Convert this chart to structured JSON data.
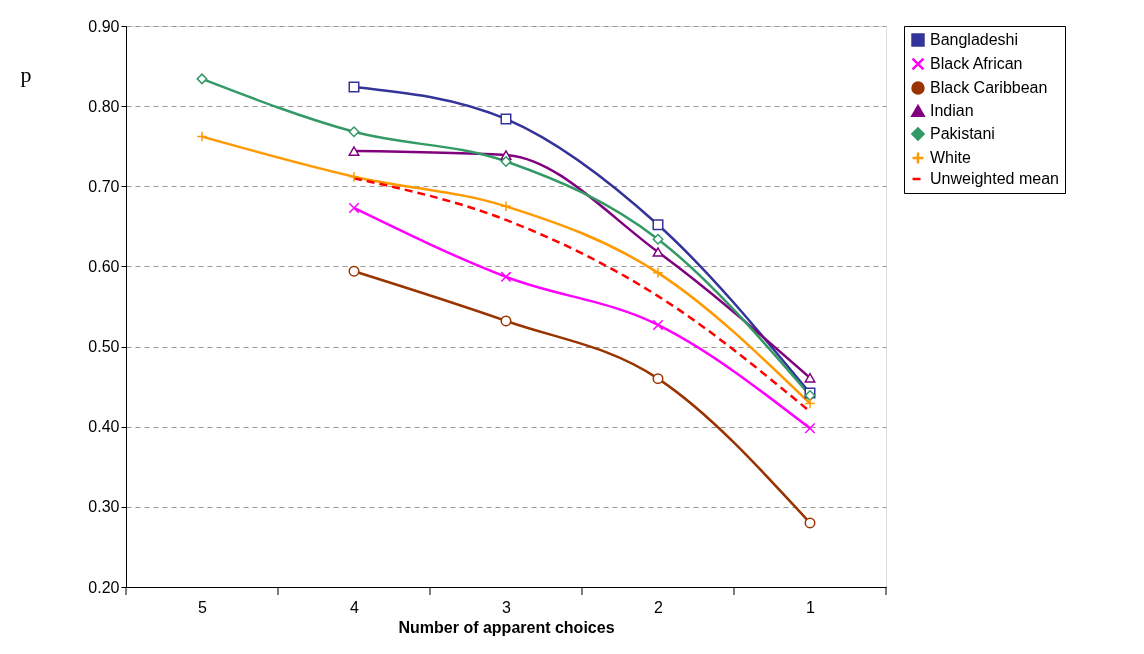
{
  "chart_data": {
    "type": "line",
    "xlabel": "Number of apparent choices",
    "ylabel": "p",
    "categories": [
      "5",
      "4",
      "3",
      "2",
      "1"
    ],
    "ylim": [
      0.2,
      0.9
    ],
    "yticks": [
      {
        "value": 0.2,
        "label": "0.20"
      },
      {
        "value": 0.3,
        "label": "0.30"
      },
      {
        "value": 0.4,
        "label": "0.40"
      },
      {
        "value": 0.5,
        "label": "0.50"
      },
      {
        "value": 0.6,
        "label": "0.60"
      },
      {
        "value": 0.7,
        "label": "0.70"
      },
      {
        "value": 0.8,
        "label": "0.80"
      },
      {
        "value": 0.9,
        "label": "0.90"
      }
    ],
    "grid": "y",
    "legend": "right",
    "series": [
      {
        "name": "Bangladeshi",
        "color": "#333399",
        "marker": "square",
        "values": [
          null,
          0.824,
          0.784,
          0.652,
          0.442
        ]
      },
      {
        "name": "Black African",
        "color": "#ff00ff",
        "marker": "cross",
        "values": [
          null,
          0.673,
          0.587,
          0.527,
          0.398
        ]
      },
      {
        "name": "Black Caribbean",
        "color": "#993300",
        "marker": "circle",
        "values": [
          null,
          0.594,
          0.532,
          0.46,
          0.28
        ]
      },
      {
        "name": "Indian",
        "color": "#800080",
        "marker": "triangle",
        "values": [
          null,
          0.744,
          0.739,
          0.618,
          0.461
        ]
      },
      {
        "name": "Pakistani",
        "color": "#339966",
        "marker": "diamond",
        "values": [
          0.834,
          0.768,
          0.731,
          0.634,
          0.439
        ]
      },
      {
        "name": "White",
        "color": "#ff9900",
        "marker": "plus",
        "values": [
          0.762,
          0.712,
          0.675,
          0.592,
          0.429
        ]
      },
      {
        "name": "Unweighted mean",
        "color": "#ff0000",
        "marker": "none",
        "line_style": "dashed",
        "values": [
          null,
          0.71,
          0.658,
          0.563,
          0.419
        ]
      }
    ]
  }
}
